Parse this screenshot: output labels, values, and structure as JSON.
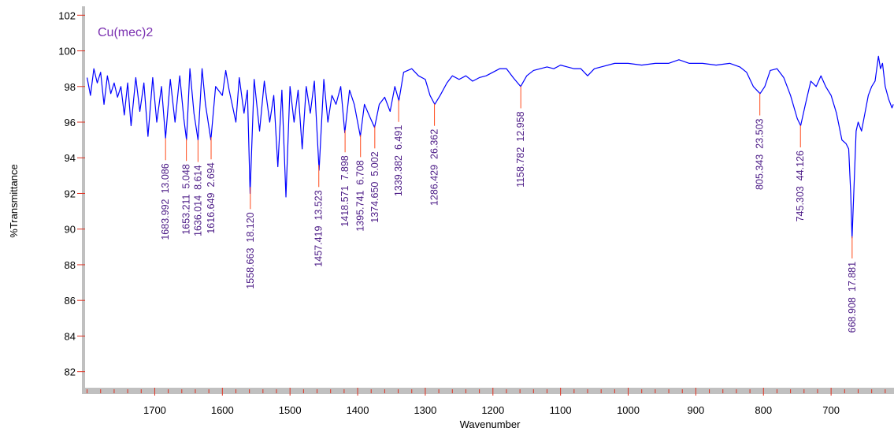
{
  "chart_data": {
    "type": "line",
    "title": "Cu(mec)2",
    "x_label": "Wavenumber",
    "y_label": "%Transmittance",
    "color": "#0000ff",
    "xlim": [
      1803,
      607
    ],
    "ylim": [
      81.1,
      102.5
    ],
    "xticks": [
      1700,
      1600,
      1500,
      1400,
      1300,
      1200,
      1100,
      1000,
      900,
      800,
      700
    ],
    "xminorticks": [
      1800,
      1780,
      1760,
      1740,
      1720,
      1680,
      1660,
      1640,
      1620,
      1580,
      1560,
      1540,
      1520,
      1480,
      1460,
      1440,
      1420,
      1380,
      1360,
      1340,
      1320,
      1280,
      1260,
      1240,
      1220,
      1180,
      1160,
      1140,
      1120,
      1080,
      1060,
      1040,
      1020,
      980,
      960,
      940,
      920,
      880,
      860,
      840,
      820,
      780,
      760,
      740,
      720,
      680,
      660,
      640,
      620
    ],
    "yticks": [
      82,
      84,
      86,
      88,
      90,
      92,
      94,
      96,
      98,
      100,
      102
    ],
    "x": [
      1800,
      1795,
      1790,
      1785,
      1780,
      1775,
      1770,
      1765,
      1760,
      1755,
      1750,
      1745,
      1740,
      1735,
      1728,
      1722,
      1716,
      1710,
      1703,
      1697,
      1690,
      1684,
      1677,
      1670,
      1663,
      1657,
      1653,
      1648,
      1642,
      1636,
      1630,
      1625,
      1617,
      1610,
      1600,
      1595,
      1590,
      1580,
      1575,
      1568,
      1563,
      1559,
      1553,
      1545,
      1538,
      1530,
      1524,
      1518,
      1512,
      1506,
      1500,
      1494,
      1488,
      1482,
      1476,
      1470,
      1464,
      1457,
      1450,
      1444,
      1438,
      1432,
      1425,
      1419,
      1412,
      1405,
      1396,
      1390,
      1382,
      1375,
      1368,
      1360,
      1352,
      1345,
      1339,
      1332,
      1320,
      1310,
      1300,
      1293,
      1286,
      1278,
      1268,
      1260,
      1250,
      1240,
      1230,
      1220,
      1210,
      1200,
      1190,
      1180,
      1170,
      1159,
      1150,
      1140,
      1130,
      1120,
      1110,
      1100,
      1090,
      1080,
      1070,
      1060,
      1050,
      1040,
      1020,
      1000,
      980,
      960,
      940,
      925,
      910,
      890,
      870,
      850,
      835,
      825,
      815,
      805,
      798,
      790,
      780,
      770,
      760,
      750,
      745,
      738,
      730,
      722,
      715,
      708,
      700,
      692,
      684,
      678,
      674,
      671,
      669,
      666,
      663,
      660,
      655,
      650,
      645,
      640,
      635,
      630,
      627,
      624,
      620,
      615,
      610,
      608
    ],
    "values": [
      98.5,
      97.5,
      99.0,
      98.2,
      98.8,
      97.0,
      98.6,
      97.6,
      98.2,
      97.4,
      98.0,
      96.4,
      98.2,
      95.8,
      98.5,
      96.6,
      98.2,
      95.2,
      98.5,
      96.0,
      98.0,
      95.1,
      98.4,
      96.0,
      98.6,
      96.2,
      95.0,
      99.0,
      96.5,
      95.0,
      99.0,
      97.0,
      95.0,
      98.0,
      97.5,
      98.9,
      97.8,
      96.0,
      98.5,
      96.5,
      97.8,
      92.0,
      98.4,
      95.5,
      98.3,
      96.0,
      97.5,
      93.5,
      97.8,
      91.8,
      98.0,
      96.0,
      97.8,
      94.5,
      98.0,
      96.5,
      98.3,
      93.3,
      98.4,
      96.0,
      97.5,
      97.0,
      98.0,
      95.4,
      97.8,
      97.0,
      95.2,
      97.0,
      96.3,
      95.7,
      97.0,
      97.4,
      96.6,
      98.0,
      97.2,
      98.8,
      99.0,
      98.6,
      98.4,
      97.5,
      97.0,
      97.5,
      98.2,
      98.6,
      98.4,
      98.6,
      98.3,
      98.5,
      98.6,
      98.8,
      99.0,
      99.0,
      98.5,
      98.0,
      98.6,
      98.9,
      99.0,
      99.1,
      99.0,
      99.2,
      99.1,
      99.0,
      99.0,
      98.6,
      99.0,
      99.1,
      99.3,
      99.3,
      99.2,
      99.3,
      99.3,
      99.5,
      99.3,
      99.3,
      99.2,
      99.3,
      99.1,
      98.8,
      98.0,
      97.6,
      98.0,
      98.9,
      99.0,
      98.5,
      97.5,
      96.2,
      95.8,
      97.0,
      98.3,
      98.0,
      98.6,
      98.0,
      97.5,
      96.5,
      95.0,
      94.8,
      94.5,
      92.0,
      89.5,
      92.5,
      95.5,
      96.0,
      95.5,
      96.5,
      97.5,
      98.0,
      98.3,
      99.7,
      99.0,
      99.3,
      98.0,
      97.3,
      96.8,
      97.0
    ],
    "peaks": [
      {
        "x": {
          "value": 1683.992,
          "label": "1683.992"
        },
        "intensity": {
          "value": 13.086,
          "label": "13.086"
        }
      },
      {
        "x": {
          "value": 1653.211,
          "label": "1653.211"
        },
        "intensity": {
          "value": 5.048,
          "label": "5.048"
        }
      },
      {
        "x": {
          "value": 1636.014,
          "label": "1636.014"
        },
        "intensity": {
          "value": 8.614,
          "label": "8.614"
        }
      },
      {
        "x": {
          "value": 1616.649,
          "label": "1616.649"
        },
        "intensity": {
          "value": 2.694,
          "label": "2.694"
        }
      },
      {
        "x": {
          "value": 1558.663,
          "label": "1558.663"
        },
        "intensity": {
          "value": 18.12,
          "label": "18.120"
        }
      },
      {
        "x": {
          "value": 1457.419,
          "label": "1457.419"
        },
        "intensity": {
          "value": 13.523,
          "label": "13.523"
        }
      },
      {
        "x": {
          "value": 1418.571,
          "label": "1418.571"
        },
        "intensity": {
          "value": 7.898,
          "label": "7.898"
        }
      },
      {
        "x": {
          "value": 1395.741,
          "label": "1395.741"
        },
        "intensity": {
          "value": 6.708,
          "label": "6.708"
        }
      },
      {
        "x": {
          "value": 1374.65,
          "label": "1374.650"
        },
        "intensity": {
          "value": 5.002,
          "label": "5.002"
        }
      },
      {
        "x": {
          "value": 1339.382,
          "label": "1339.382"
        },
        "intensity": {
          "value": 6.491,
          "label": "6.491"
        }
      },
      {
        "x": {
          "value": 1286.429,
          "label": "1286.429"
        },
        "intensity": {
          "value": 26.362,
          "label": "26.362"
        }
      },
      {
        "x": {
          "value": 1158.782,
          "label": "1158.782"
        },
        "intensity": {
          "value": 12.958,
          "label": "12.958"
        }
      },
      {
        "x": {
          "value": 805.343,
          "label": "805.343"
        },
        "intensity": {
          "value": 23.503,
          "label": "23.503"
        }
      },
      {
        "x": {
          "value": 745.303,
          "label": "745.303"
        },
        "intensity": {
          "value": 44.126,
          "label": "44.126"
        }
      },
      {
        "x": {
          "value": 668.908,
          "label": "668.908"
        },
        "intensity": {
          "value": 17.881,
          "label": "17.881"
        }
      }
    ]
  }
}
